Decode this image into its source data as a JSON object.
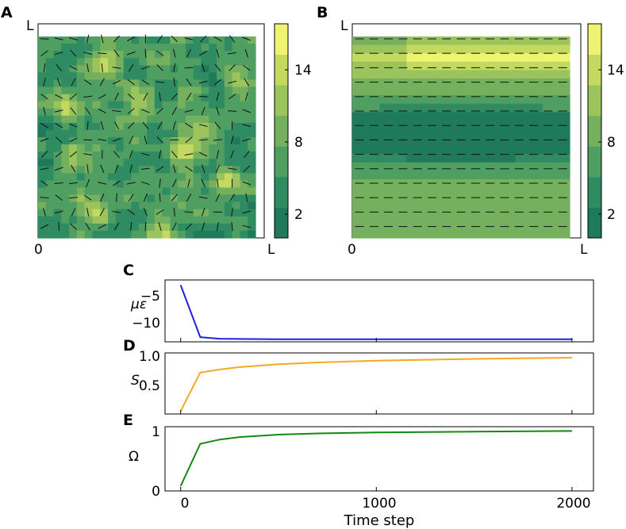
{
  "colors": {
    "c0": "#1f7a5c",
    "c1": "#2f8c62",
    "c2": "#4f9e62",
    "c3": "#75b05e",
    "c4": "#9cc45d",
    "c5": "#c3d95f",
    "c6": "#eef472",
    "curve_mu": "#1f1fe0",
    "curve_s": "#f7a824",
    "curve_omega": "#138a13"
  },
  "chart_data": [
    {
      "type": "heatmap",
      "panel": "A",
      "x_ticks": [
        "0",
        "L"
      ],
      "y_ticks": [
        "L"
      ],
      "colorbar": {
        "ticks": [
          "2",
          "8",
          "14"
        ],
        "min": 0,
        "max": 17,
        "levels": 7
      },
      "description_field": "random",
      "director_field": "random orientations"
    },
    {
      "type": "heatmap",
      "panel": "B",
      "x_ticks": [
        "0",
        "L"
      ],
      "y_ticks": [
        "L"
      ],
      "colorbar": {
        "ticks": [
          "2",
          "8",
          "14"
        ],
        "min": 0,
        "max": 17,
        "levels": 7
      },
      "description_field": "horizontal bands",
      "director_field": "horizontal"
    },
    {
      "type": "line",
      "panel": "C",
      "ylabel": "με",
      "x": [
        0,
        100,
        200,
        300,
        500,
        700,
        1000,
        1500,
        2000
      ],
      "series": [
        {
          "name": "με",
          "values": [
            -2.5,
            -12.6,
            -12.9,
            -12.95,
            -13.0,
            -13.0,
            -13.0,
            -13.0,
            -13.0
          ]
        }
      ],
      "yticks": [
        "−5",
        "−10"
      ],
      "ylim": [
        -13.5,
        -1.5
      ],
      "xlim": [
        -80,
        2110
      ]
    },
    {
      "type": "line",
      "panel": "D",
      "ylabel": "S",
      "x": [
        0,
        100,
        200,
        300,
        500,
        700,
        1000,
        1500,
        2000
      ],
      "series": [
        {
          "name": "S",
          "values": [
            0.05,
            0.7,
            0.75,
            0.79,
            0.84,
            0.87,
            0.9,
            0.93,
            0.95
          ]
        }
      ],
      "yticks": [
        "0.5",
        "1.0"
      ],
      "ylim": [
        0.0,
        1.03
      ],
      "xlim": [
        -80,
        2110
      ]
    },
    {
      "type": "line",
      "panel": "E",
      "ylabel": "Ω",
      "xlabel": "Time step",
      "x": [
        0,
        100,
        200,
        300,
        500,
        700,
        1000,
        1500,
        2000
      ],
      "series": [
        {
          "name": "Ω",
          "values": [
            0.08,
            0.77,
            0.84,
            0.88,
            0.92,
            0.94,
            0.955,
            0.97,
            0.98
          ]
        }
      ],
      "xticks": [
        "0",
        "1000",
        "2000"
      ],
      "yticks": [
        "0",
        "1"
      ],
      "ylim": [
        0.0,
        1.05
      ],
      "xlim": [
        -80,
        2110
      ]
    }
  ]
}
